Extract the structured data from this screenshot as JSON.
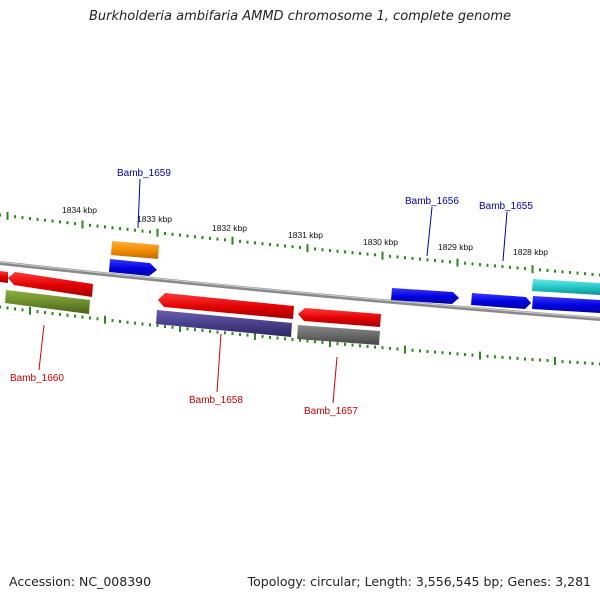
{
  "title": "Burkholderia ambifaria AMMD chromosome 1, complete genome",
  "footer": {
    "accession": "Accession: NC_008390",
    "stats": "Topology: circular; Length: 3,556,545 bp; Genes: 3,281"
  },
  "scale": {
    "kbp_labels": [
      "1834 kbp",
      "1833 kbp",
      "1832 kbp",
      "1831 kbp",
      "1830 kbp",
      "1829 kbp",
      "1828 kbp"
    ]
  },
  "genes": [
    {
      "id": "Bamb_1659",
      "label": "Bamb_1659",
      "strand": "forward",
      "label_color": "#0000aa"
    },
    {
      "id": "Bamb_1656",
      "label": "Bamb_1656",
      "strand": "forward",
      "label_color": "#0000aa"
    },
    {
      "id": "Bamb_1655",
      "label": "Bamb_1655",
      "strand": "forward",
      "label_color": "#0000aa"
    },
    {
      "id": "Bamb_1660",
      "label": "Bamb_1660",
      "strand": "reverse",
      "label_color": "#cc0000"
    },
    {
      "id": "Bamb_1658",
      "label": "Bamb_1658",
      "strand": "reverse",
      "label_color": "#cc0000"
    },
    {
      "id": "Bamb_1657",
      "label": "Bamb_1657",
      "strand": "reverse",
      "label_color": "#cc0000"
    }
  ],
  "colors": {
    "forward_gene": "#0000e6",
    "reverse_gene": "#ee0000",
    "cog_orange": "#f08a00",
    "cog_olive": "#6b8a2a",
    "cog_purple": "#4a3f8a",
    "cog_gray": "#666666",
    "cog_cyan": "#20c4c4",
    "tick_green": "#2a8a1a",
    "backbone": "#808080"
  }
}
